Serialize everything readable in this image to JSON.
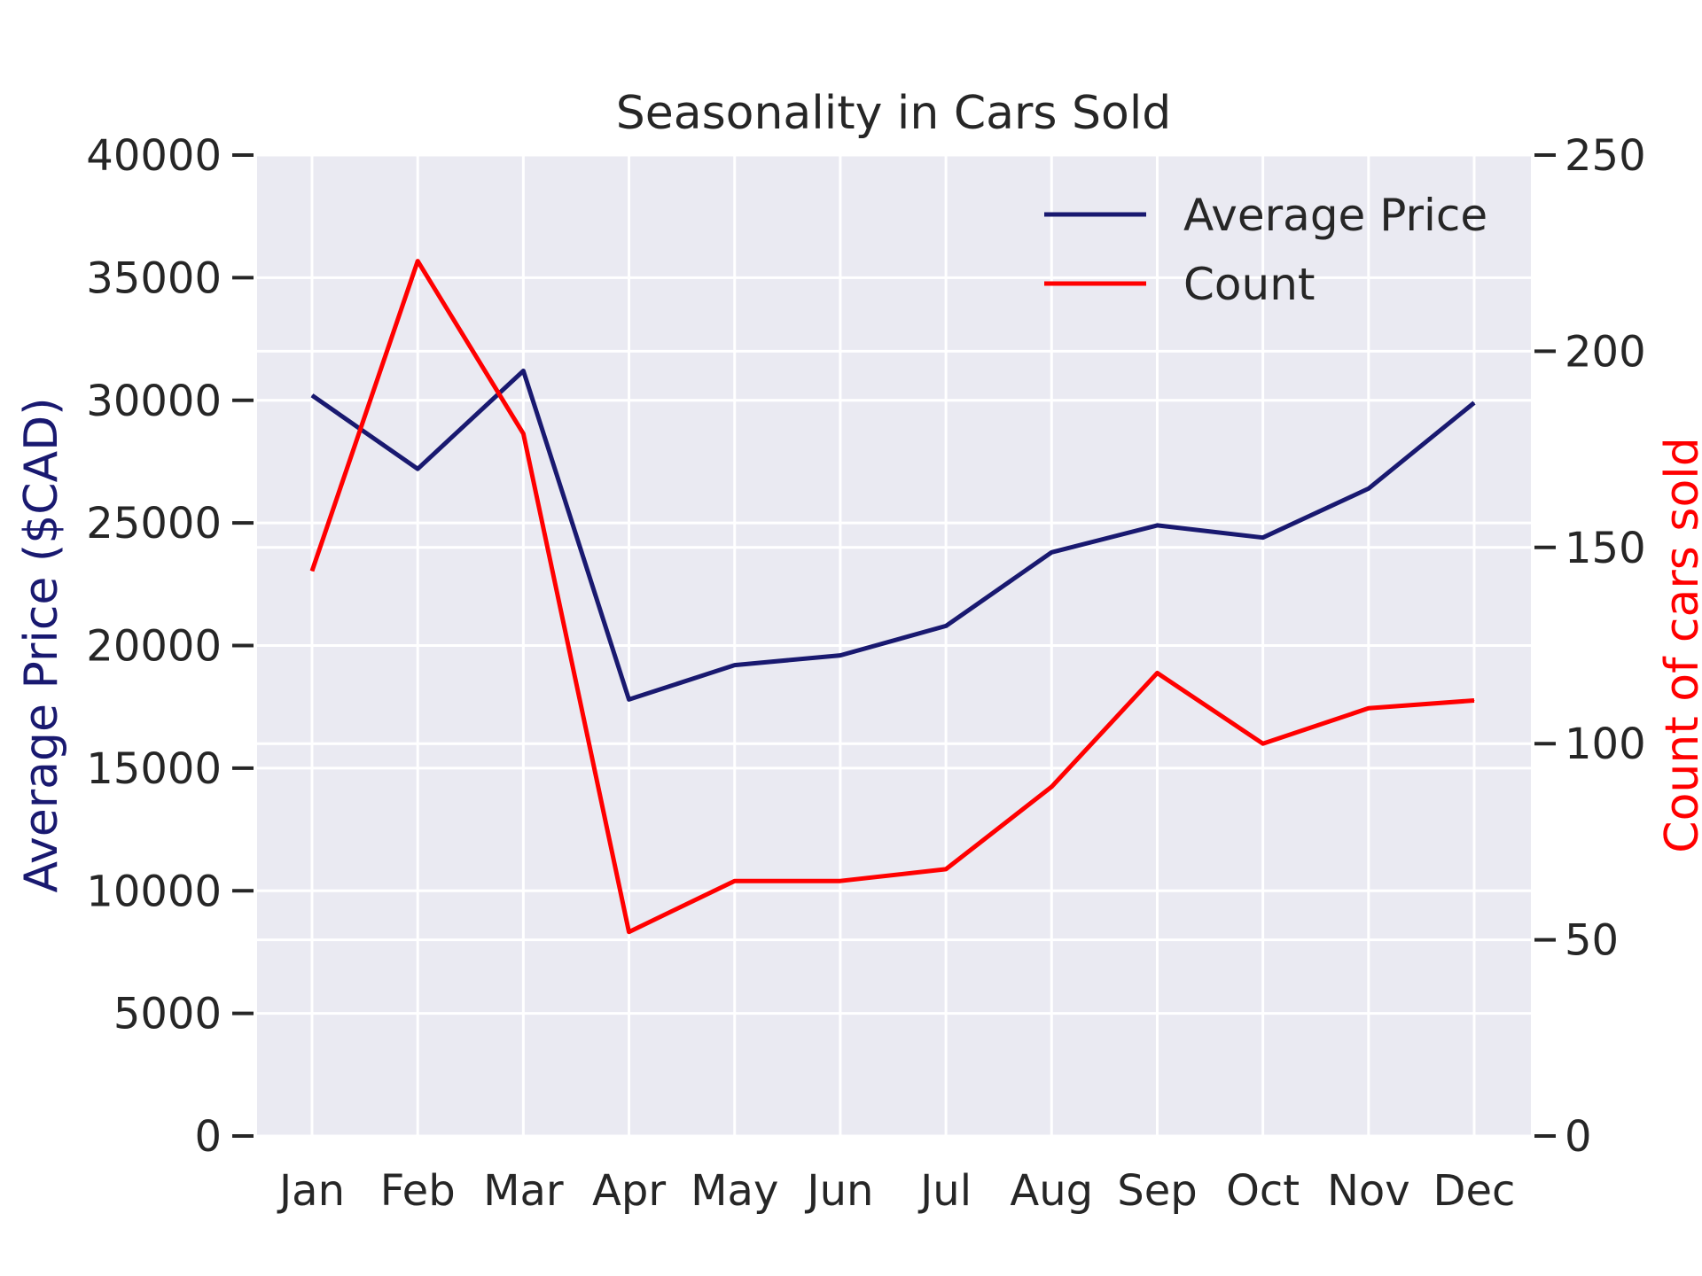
{
  "chart_data": {
    "type": "line",
    "title": "Seasonality in Cars Sold",
    "categories": [
      "Jan",
      "Feb",
      "Mar",
      "Apr",
      "May",
      "Jun",
      "Jul",
      "Aug",
      "Sep",
      "Oct",
      "Nov",
      "Dec"
    ],
    "ylabel": "Average Price ($CAD)",
    "y2label": "Count of cars sold",
    "ylim": [
      0,
      40000
    ],
    "y2lim": [
      0,
      250
    ],
    "yticks": [
      "0",
      "5000",
      "10000",
      "15000",
      "20000",
      "25000",
      "30000",
      "35000",
      "40000"
    ],
    "y2ticks": [
      "0",
      "50",
      "100",
      "150",
      "200",
      "250"
    ],
    "grid": true,
    "legend_position": "top-right",
    "series": [
      {
        "name": "Average Price",
        "axis": "left",
        "color": "#191970",
        "values": [
          30200,
          27200,
          31200,
          17800,
          19200,
          19600,
          20800,
          23800,
          24900,
          24400,
          26400,
          29900
        ]
      },
      {
        "name": "Count",
        "axis": "right",
        "color": "#ff0000",
        "values": [
          144,
          223,
          179,
          52,
          65,
          65,
          68,
          89,
          118,
          100,
          109,
          111
        ]
      }
    ]
  }
}
